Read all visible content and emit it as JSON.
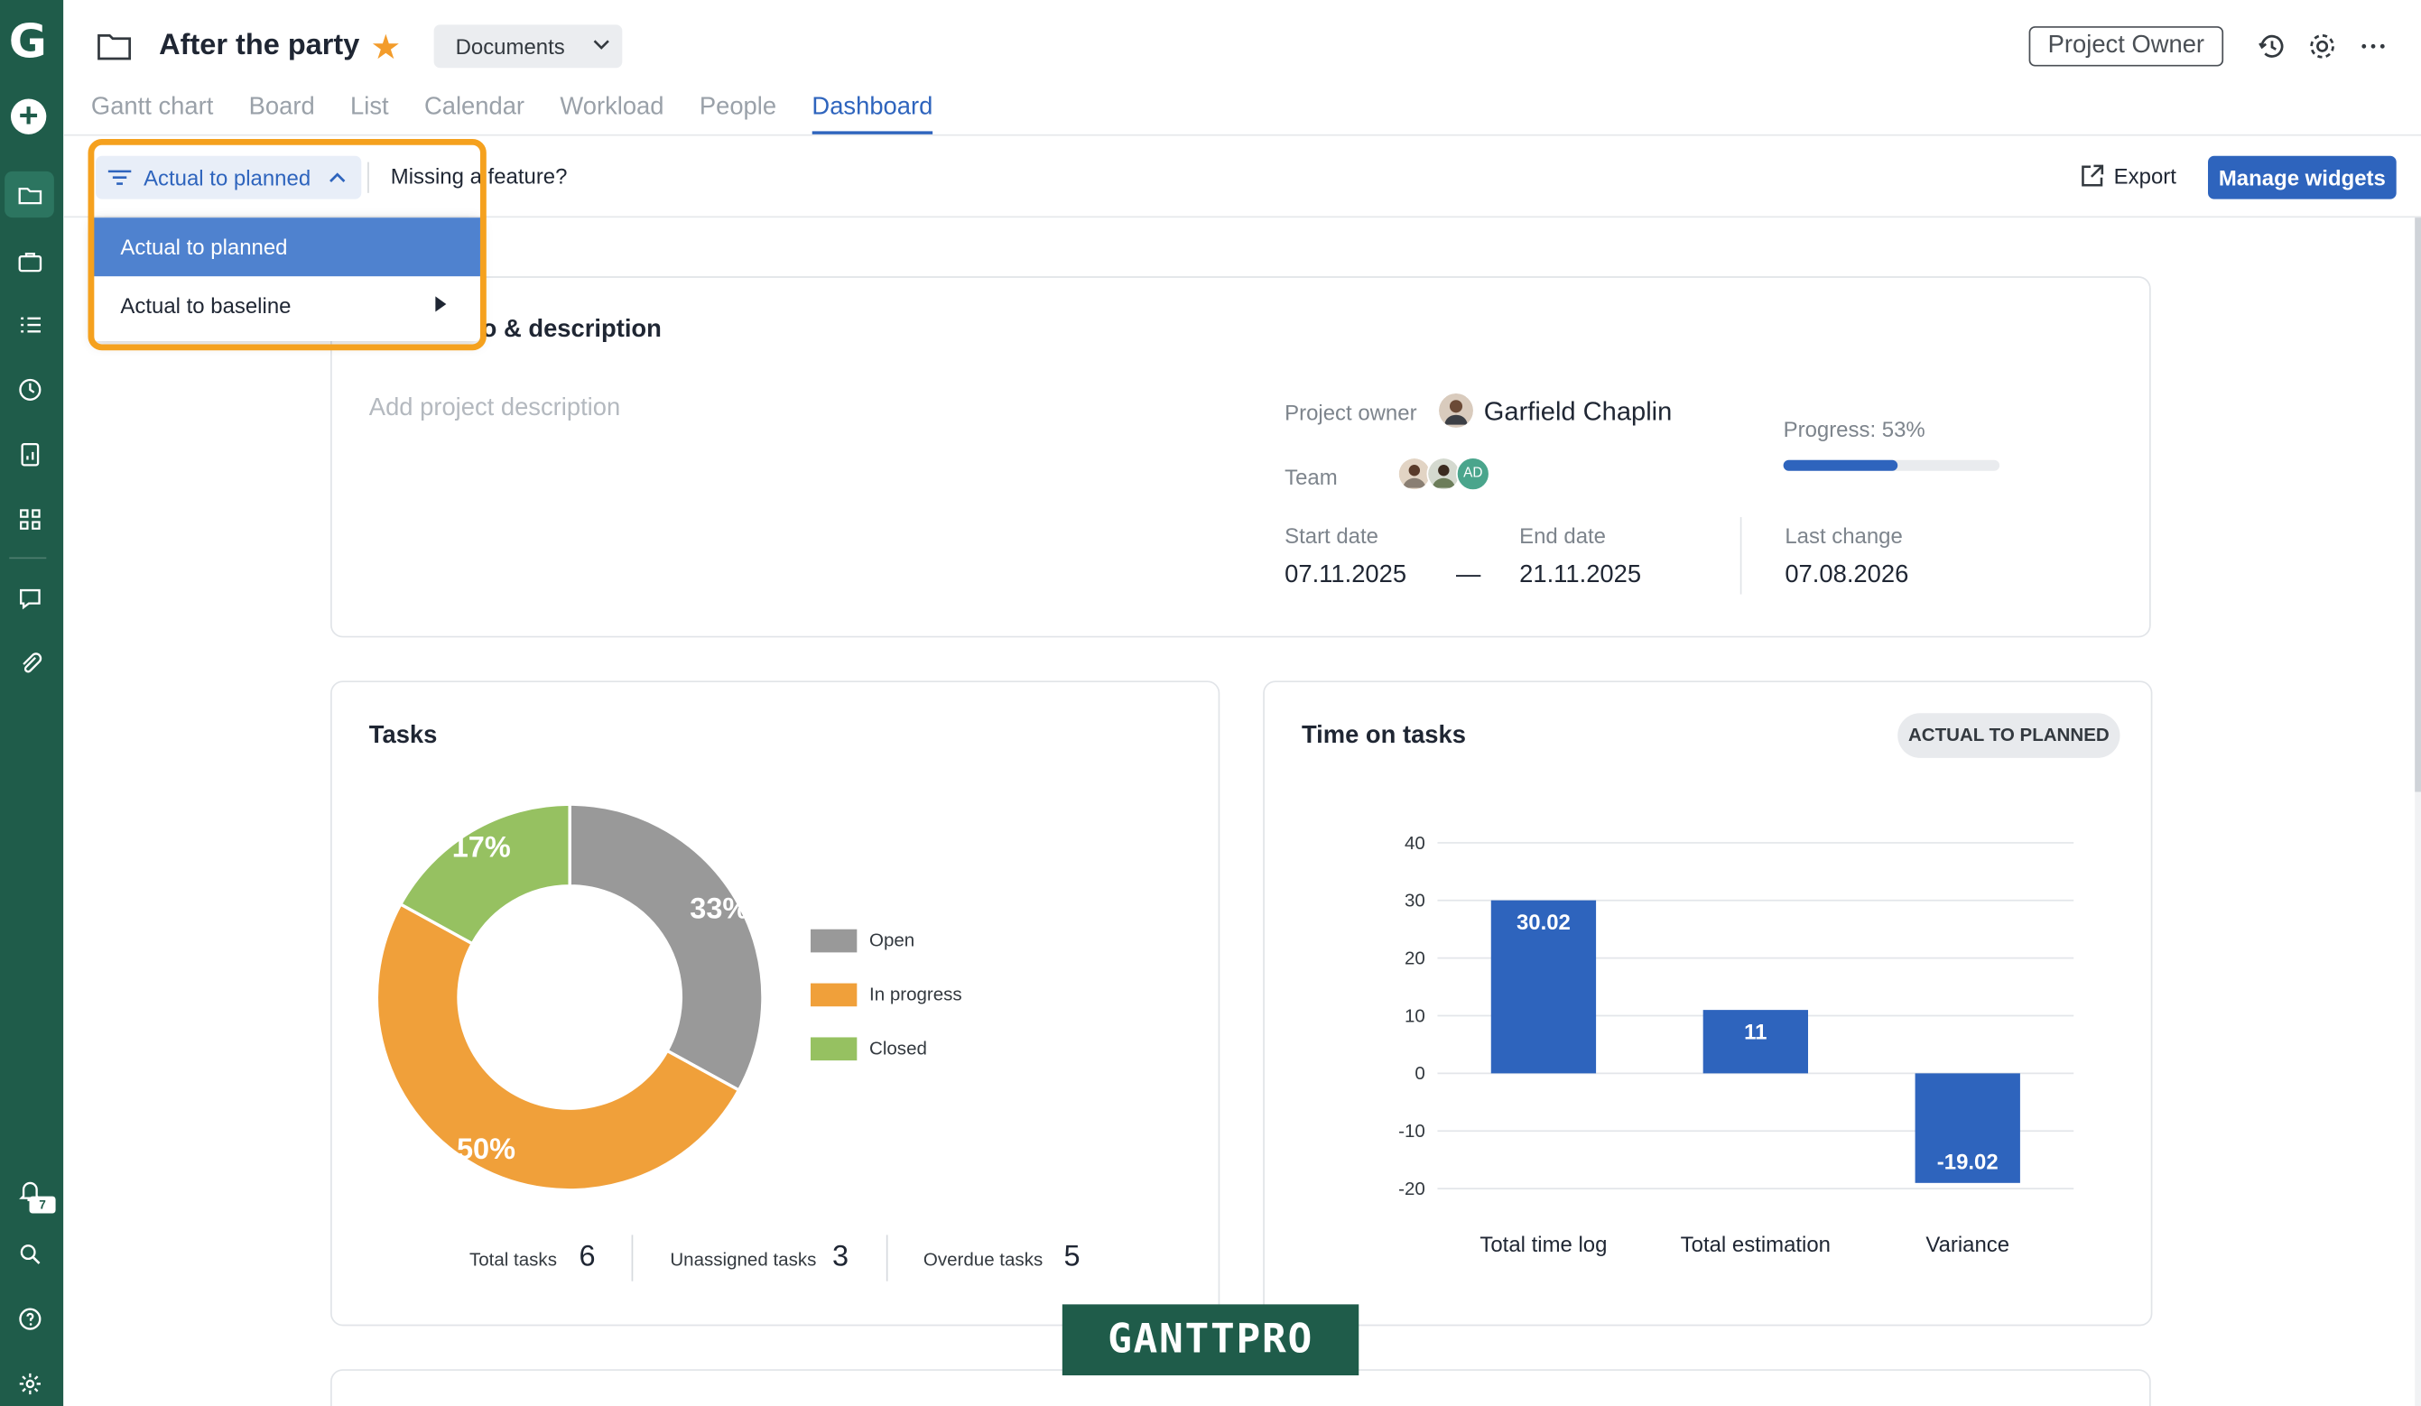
{
  "header": {
    "project_title": "After the party",
    "folder_dropdown": "Documents",
    "project_owner_button": "Project Owner"
  },
  "tabs": [
    {
      "label": "Gantt chart"
    },
    {
      "label": "Board"
    },
    {
      "label": "List"
    },
    {
      "label": "Calendar"
    },
    {
      "label": "Workload"
    },
    {
      "label": "People"
    },
    {
      "label": "Dashboard",
      "active": true
    }
  ],
  "toolbar": {
    "filter_label": "Actual to planned",
    "missing_feature": "Missing a feature?",
    "export_label": "Export",
    "manage_widgets": "Manage widgets"
  },
  "dropdown": {
    "options": [
      "Actual to planned",
      "Actual to baseline"
    ],
    "selected": "Actual to planned"
  },
  "sidebar": {
    "notification_count": "7",
    "icons": [
      "gantt-logo-icon",
      "add-icon",
      "folder-icon",
      "briefcase-icon",
      "list-icon",
      "clock-icon",
      "report-icon",
      "grid-icon",
      "chat-icon",
      "attachment-icon",
      "bell-icon",
      "search-icon",
      "help-icon",
      "settings-icon"
    ]
  },
  "project_info": {
    "title_visible": "o & description",
    "description_placeholder": "Add project description",
    "owner_label": "Project owner",
    "owner_name": "Garfield Chaplin",
    "team_label": "Team",
    "team_initials": "AD",
    "progress_label": "Progress: 53%",
    "progress_value": 0.53,
    "start_label": "Start date",
    "start_value": "07.11.2025",
    "date_dash": "—",
    "end_label": "End date",
    "end_value": "21.11.2025",
    "last_change_label": "Last change",
    "last_change_value": "07.08.2026"
  },
  "tasks_widget": {
    "title": "Tasks",
    "total_label": "Total tasks",
    "total_value": "6",
    "unassigned_label": "Unassigned tasks",
    "unassigned_value": "3",
    "overdue_label": "Overdue tasks",
    "overdue_value": "5"
  },
  "time_widget": {
    "title": "Time on tasks",
    "pill": "ACTUAL TO PLANNED"
  },
  "colors": {
    "sidebar": "#1f5c4a",
    "accent": "#2e64bd",
    "open": "#999999",
    "in_progress": "#f0a03a",
    "closed": "#96c161",
    "highlight": "#f5a11e"
  },
  "watermark": "GANTTPRO",
  "chart_data": [
    {
      "type": "pie",
      "title": "Tasks",
      "categories": [
        "Open",
        "In progress",
        "Closed"
      ],
      "values": [
        33,
        50,
        17
      ],
      "labels": [
        "33%",
        "50%",
        "17%"
      ],
      "colors": [
        "#999999",
        "#f0a03a",
        "#96c161"
      ],
      "legend": "right"
    },
    {
      "type": "bar",
      "title": "Time on tasks",
      "categories": [
        "Total time log",
        "Total estimation",
        "Variance"
      ],
      "values": [
        30.02,
        11,
        -19.02
      ],
      "labels": [
        "30.02",
        "11",
        "-19.02"
      ],
      "ylim": [
        -20,
        40
      ],
      "yticks": [
        40,
        30,
        20,
        10,
        0,
        -10,
        -20
      ],
      "grid": true,
      "color": "#2e64bd"
    }
  ]
}
